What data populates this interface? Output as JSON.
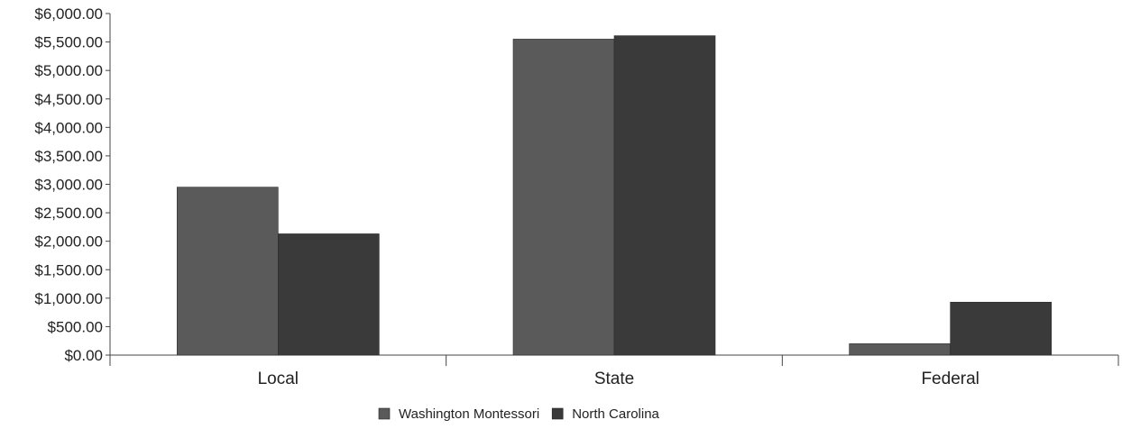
{
  "chart_data": {
    "type": "bar",
    "title": "",
    "xlabel": "",
    "ylabel": "",
    "categories": [
      "Local",
      "State",
      "Federal"
    ],
    "series": [
      {
        "name": "Washington Montessori",
        "color": "#5a5a5a",
        "values": [
          2950,
          5550,
          200
        ]
      },
      {
        "name": "North Carolina",
        "color": "#3a3a3a",
        "values": [
          2130,
          5610,
          930
        ]
      }
    ],
    "ylim": [
      0,
      6000
    ],
    "ytick_step": 500,
    "ytick_labels": [
      "$0.00",
      "$500.00",
      "$1,000.00",
      "$1,500.00",
      "$2,000.00",
      "$2,500.00",
      "$3,000.00",
      "$3,500.00",
      "$4,000.00",
      "$4,500.00",
      "$5,000.00",
      "$5,500.00",
      "$6,000.00"
    ],
    "grid": false,
    "legend_position": "bottom-center"
  }
}
